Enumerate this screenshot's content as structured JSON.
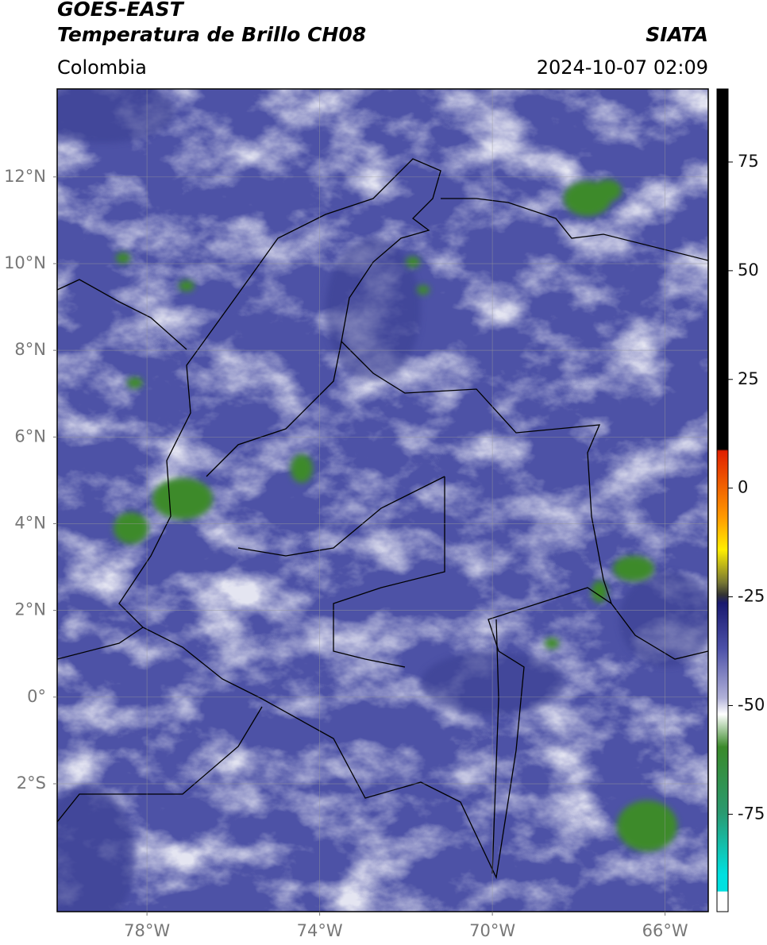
{
  "header": {
    "title": "GOES-EAST",
    "subtitle": "Temperatura de Brillo CH08",
    "source": "SIATA",
    "region": "Colombia",
    "datetime": "2024-10-07 02:09"
  },
  "map": {
    "xlim": [
      -80.08,
      -65.0
    ],
    "ylim": [
      -4.95,
      14.03
    ],
    "xticks": [
      {
        "value": -78,
        "label": "78°W"
      },
      {
        "value": -74,
        "label": "74°W"
      },
      {
        "value": -70,
        "label": "70°W"
      },
      {
        "value": -66,
        "label": "66°W"
      }
    ],
    "yticks": [
      {
        "value": 12,
        "label": "12°N"
      },
      {
        "value": 10,
        "label": "10°N"
      },
      {
        "value": 8,
        "label": "8°N"
      },
      {
        "value": 6,
        "label": "6°N"
      },
      {
        "value": 4,
        "label": "4°N"
      },
      {
        "value": 2,
        "label": "2°N"
      },
      {
        "value": 0,
        "label": "0°"
      },
      {
        "value": -2,
        "label": "2°S"
      }
    ],
    "grid": true
  },
  "colorbar": {
    "lim": [
      -97.4,
      91.8
    ],
    "ticks": [
      75,
      50,
      25,
      0,
      -25,
      -50,
      -75
    ]
  }
}
